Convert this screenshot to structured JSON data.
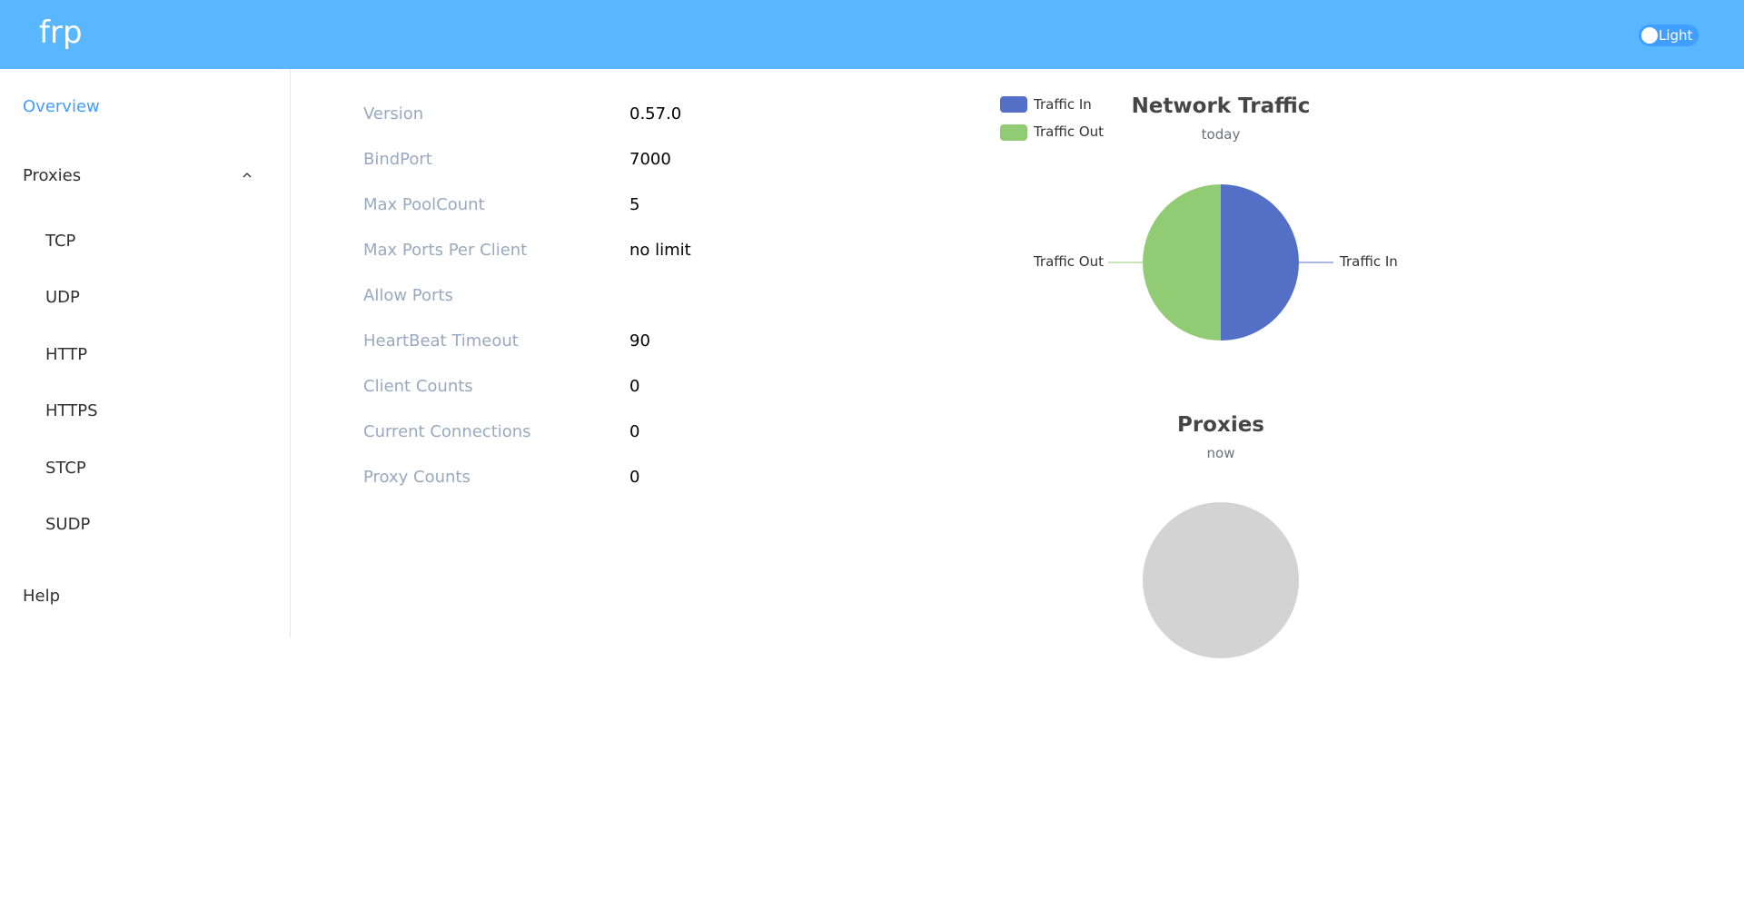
{
  "header": {
    "logo": "frp",
    "theme_toggle_label": "Light",
    "colors": {
      "background": "#58b7ff",
      "toggle": "#409eff"
    }
  },
  "sidebar": {
    "overview": "Overview",
    "proxies": "Proxies",
    "proxy_types": [
      "TCP",
      "UDP",
      "HTTP",
      "HTTPS",
      "STCP",
      "SUDP"
    ],
    "help": "Help",
    "icons": {
      "proxies_toggle": "chevron-up-icon"
    },
    "active_color": "#409eff"
  },
  "server_info": [
    {
      "label": "Version",
      "value": "0.57.0"
    },
    {
      "label": "BindPort",
      "value": "7000"
    },
    {
      "label": "Max PoolCount",
      "value": "5"
    },
    {
      "label": "Max Ports Per Client",
      "value": "no limit"
    },
    {
      "label": "Allow Ports",
      "value": ""
    },
    {
      "label": "HeartBeat Timeout",
      "value": "90"
    },
    {
      "label": "Client Counts",
      "value": "0"
    },
    {
      "label": "Current Connections",
      "value": "0"
    },
    {
      "label": "Proxy Counts",
      "value": "0"
    }
  ],
  "chart_data": [
    {
      "type": "pie",
      "title": "Network Traffic",
      "subtitle": "today",
      "legend": [
        "Traffic In",
        "Traffic Out"
      ],
      "legend_position": "top-left",
      "series": [
        {
          "name": "Traffic In",
          "value": 1,
          "color": "#5470c6"
        },
        {
          "name": "Traffic Out",
          "value": 1,
          "color": "#91cc75"
        }
      ]
    },
    {
      "type": "pie",
      "title": "Proxies",
      "subtitle": "now",
      "series": [],
      "empty_color": "#d3d3d3"
    }
  ]
}
